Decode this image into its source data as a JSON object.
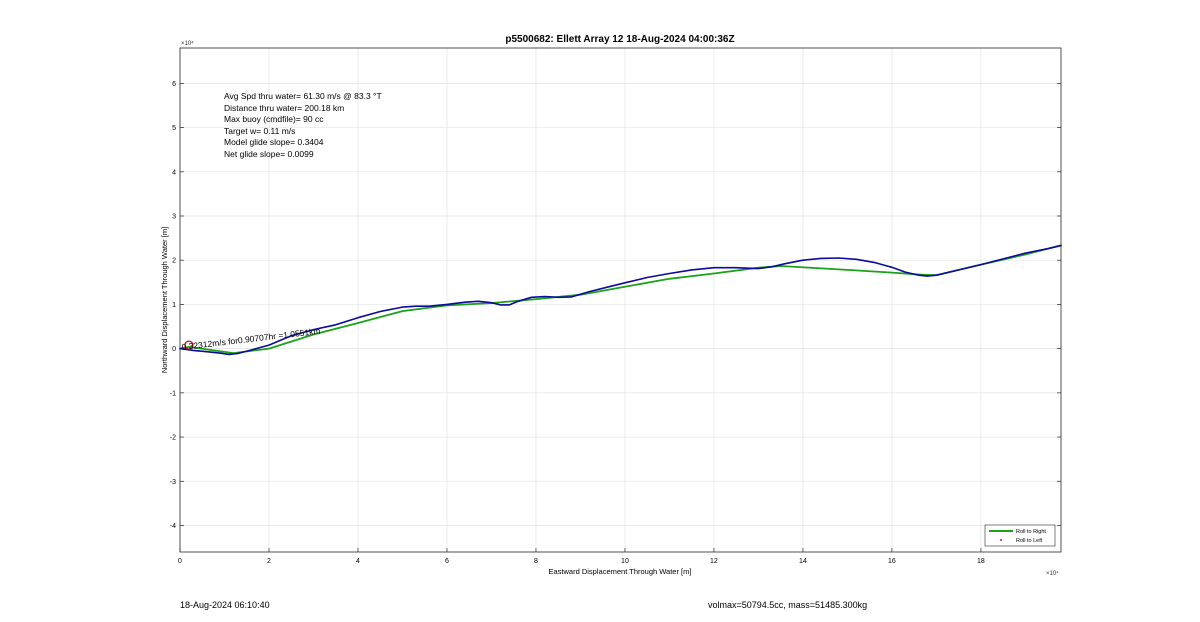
{
  "chart_data": {
    "type": "line",
    "title": "p5500682: Ellett Array 12 18-Aug-2024 04:00:36Z",
    "xlabel": "Eastward Displacement Through Water [m]",
    "ylabel": "Northward Displacement Through Water [m]",
    "x_exponent_label": "×10⁴",
    "y_exponent_label": "×10⁴",
    "xlim": [
      0,
      198000
    ],
    "ylim": [
      -46000,
      68000
    ],
    "xticks": [
      0,
      20000,
      40000,
      60000,
      80000,
      100000,
      120000,
      140000,
      160000,
      180000
    ],
    "xtick_labels": [
      "0",
      "2",
      "4",
      "6",
      "8",
      "10",
      "12",
      "14",
      "16",
      "18"
    ],
    "yticks": [
      -40000,
      -30000,
      -20000,
      -10000,
      0,
      10000,
      20000,
      30000,
      40000,
      50000,
      60000
    ],
    "ytick_labels": [
      "-4",
      "-3",
      "-2",
      "-1",
      "0",
      "1",
      "2",
      "3",
      "4",
      "5",
      "6"
    ],
    "grid": true,
    "legend_position": "bottom-right",
    "annotations": [
      "Avg Spd thru water= 61.30 m/s @  83.3 °T",
      "Distance thru water= 200.18 km",
      "Max buoy (cmdfile)= 90 cc",
      "Target w= 0.11 m/s",
      "Model glide slope= 0.3404",
      "Net glide slope= 0.0099"
    ],
    "segment_label": "0.32312m/s for0.90707hr =1.0551km",
    "start_marker": {
      "x": 2000,
      "y": 800
    },
    "series": [
      {
        "name": "Roll to Right",
        "color": "#1aa31a",
        "x": [
          0,
          2000,
          12000,
          20000,
          30000,
          40000,
          50000,
          60000,
          70000,
          80000,
          90000,
          100000,
          110000,
          120000,
          130000,
          135000,
          150000,
          160000,
          167000,
          170000,
          180000,
          190000,
          198000
        ],
        "y": [
          0,
          400,
          -1000,
          0,
          3200,
          5800,
          8500,
          9800,
          10300,
          11200,
          12200,
          14000,
          15800,
          17000,
          18300,
          18700,
          17800,
          17200,
          16700,
          16600,
          19000,
          21300,
          23400
        ]
      },
      {
        "name": "Roll to Left",
        "color": "#e01010",
        "x": [
          0,
          3000,
          6000,
          9000,
          11000,
          13000,
          16000,
          20000,
          25000,
          30000,
          35000,
          40000,
          45000,
          50000,
          53000,
          56000,
          60000,
          64000,
          67000,
          70000,
          72000,
          74000,
          76000,
          79000,
          82000,
          85000,
          88000,
          92000,
          96000,
          100000,
          105000,
          110000,
          115000,
          120000,
          125000,
          130000,
          133000,
          136000,
          140000,
          144000,
          148000,
          152000,
          156000,
          160000,
          163000,
          166000,
          168000,
          170000,
          175000,
          180000,
          185000,
          190000,
          195000,
          198000
        ],
        "y": [
          0,
          -400,
          -700,
          -1000,
          -1300,
          -1100,
          -300,
          800,
          2900,
          4300,
          5400,
          7000,
          8400,
          9400,
          9600,
          9600,
          10000,
          10500,
          10700,
          10400,
          9900,
          9900,
          10700,
          11600,
          11800,
          11600,
          11700,
          12900,
          13900,
          14900,
          16100,
          17000,
          17800,
          18300,
          18300,
          18100,
          18500,
          19200,
          20000,
          20400,
          20500,
          20200,
          19500,
          18400,
          17300,
          16600,
          16400,
          16600,
          17800,
          19000,
          20300,
          21600,
          22600,
          23300
        ]
      },
      {
        "name": "",
        "color": "#0b0b9e",
        "x": [
          0,
          3000,
          6000,
          9000,
          11000,
          13000,
          16000,
          20000,
          25000,
          30000,
          35000,
          40000,
          45000,
          50000,
          53000,
          56000,
          60000,
          64000,
          67000,
          70000,
          72000,
          74000,
          76000,
          79000,
          82000,
          85000,
          88000,
          92000,
          96000,
          100000,
          105000,
          110000,
          115000,
          120000,
          125000,
          130000,
          133000,
          136000,
          140000,
          144000,
          148000,
          152000,
          156000,
          160000,
          163000,
          166000,
          168000,
          170000,
          175000,
          180000,
          185000,
          190000,
          195000,
          198000
        ],
        "y": [
          0,
          -400,
          -700,
          -1000,
          -1300,
          -1100,
          -300,
          800,
          2900,
          4300,
          5400,
          7000,
          8400,
          9400,
          9600,
          9600,
          10000,
          10500,
          10700,
          10400,
          9900,
          9900,
          10700,
          11600,
          11800,
          11600,
          11700,
          12900,
          13900,
          14900,
          16100,
          17000,
          17800,
          18300,
          18300,
          18100,
          18500,
          19200,
          20000,
          20400,
          20500,
          20200,
          19500,
          18400,
          17300,
          16600,
          16400,
          16600,
          17800,
          19000,
          20300,
          21600,
          22600,
          23300
        ]
      }
    ]
  },
  "footer": {
    "left": "18-Aug-2024 06:10:40",
    "right": "volmax=50794.5cc, mass=51485.300kg"
  }
}
